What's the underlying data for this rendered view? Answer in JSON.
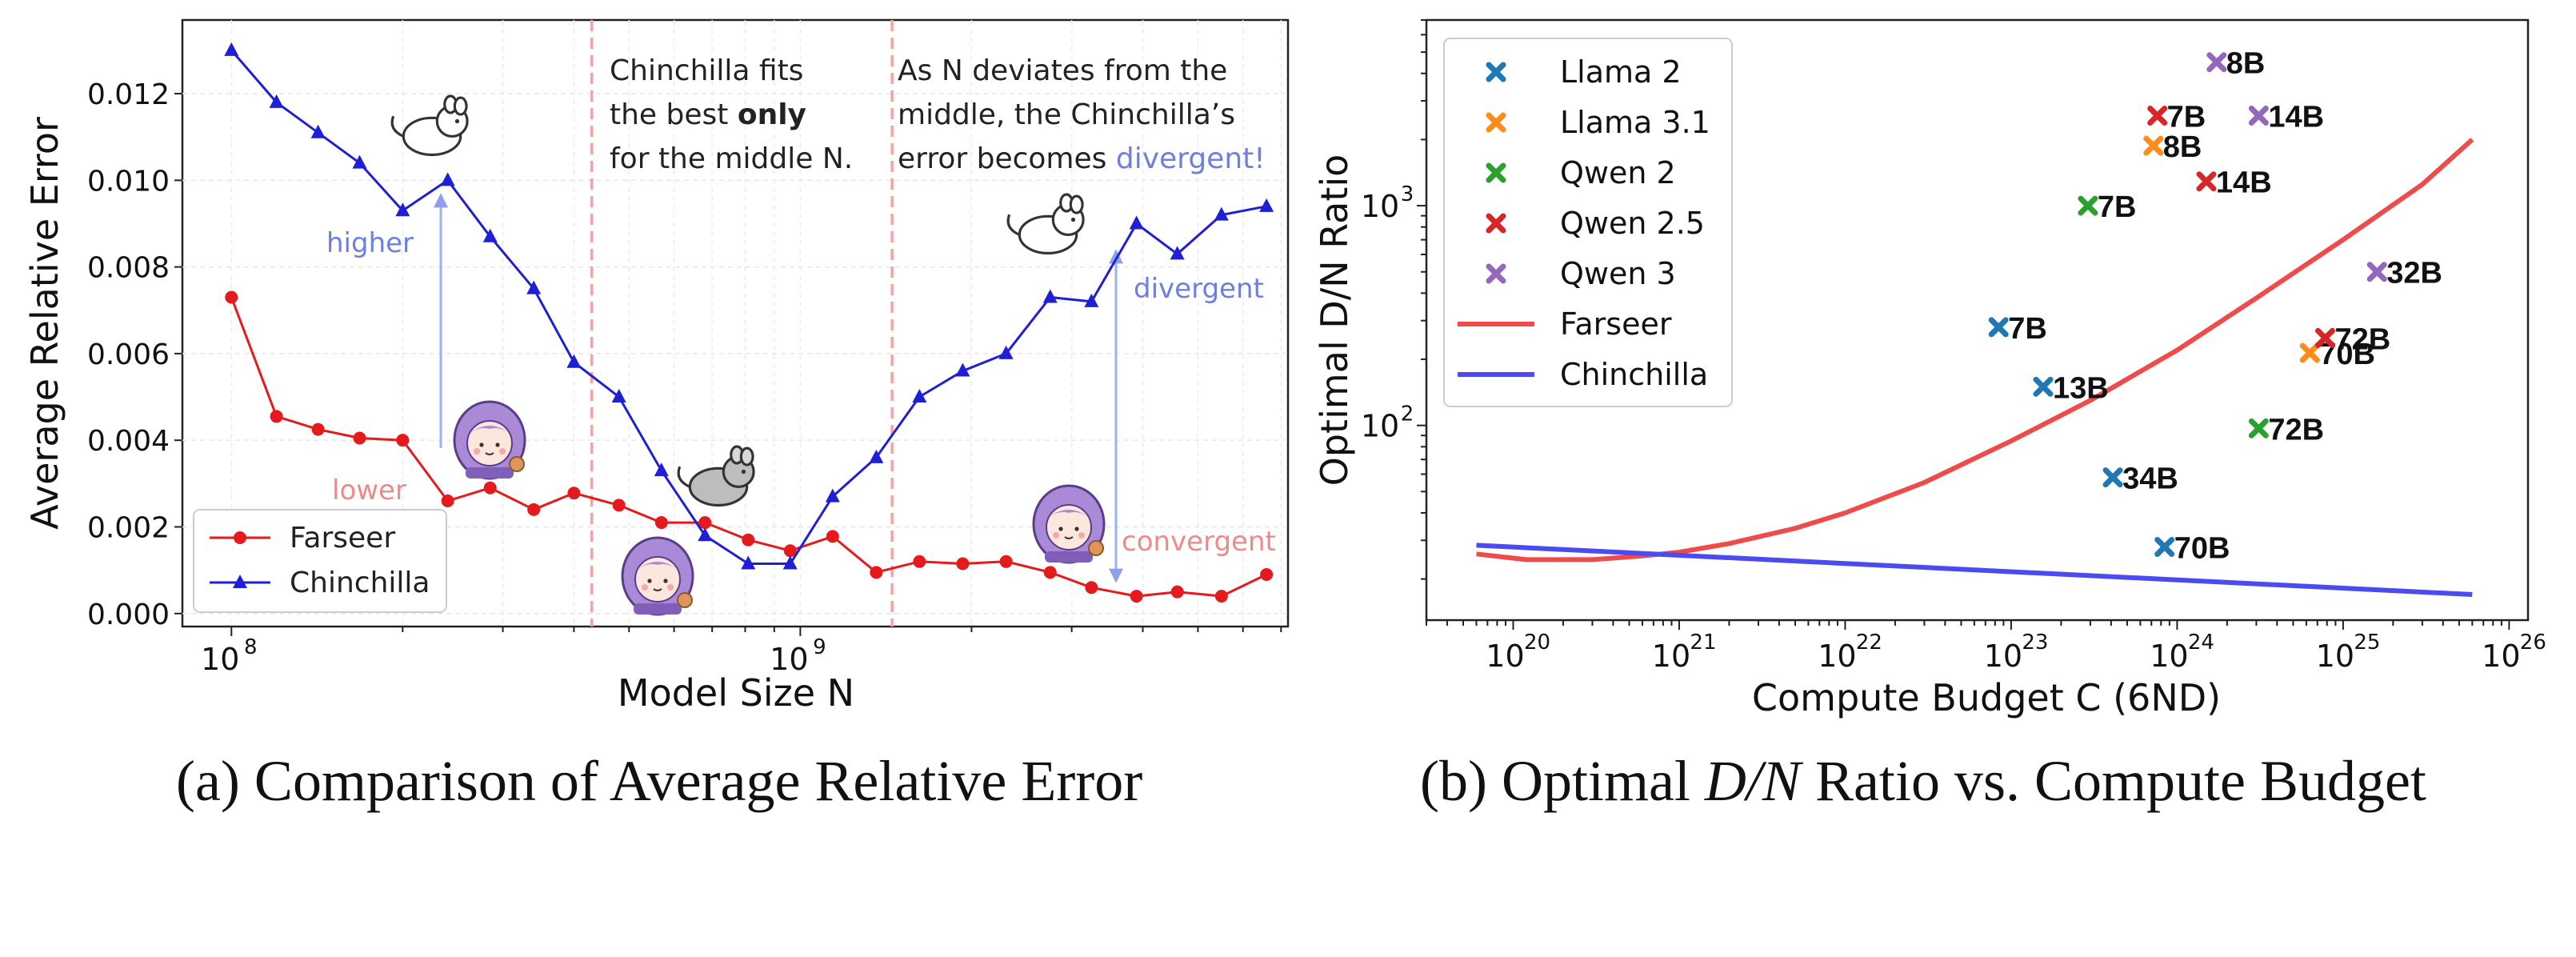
{
  "captions": {
    "a_prefix": "(a)",
    "a_text": "Comparison of Average Relative Error",
    "b_prefix": "(b)",
    "b_text_1": "Optimal ",
    "b_math": "D/N",
    "b_text_2": " Ratio vs. Compute Budget"
  },
  "colors": {
    "farseer": "#e41a1c",
    "chinchilla": "#1f1fd6",
    "farseer_line_b": "#ef4b4b",
    "chinchilla_line_b": "#4b4bef",
    "llama2": "#1f77b4",
    "llama31": "#ff8c1a",
    "qwen2": "#2ca02c",
    "qwen25": "#d62728",
    "qwen3": "#9467bd",
    "pink_text": "#ef8a8a",
    "blue_text": "#6d7fe0",
    "divider": "#f4a3a3"
  },
  "chart_data": [
    {
      "type": "line",
      "title": "Comparison of Average Relative Error",
      "xlabel": "Model Size N",
      "ylabel": "Average Relative Error",
      "xscale": "log",
      "xlim": [
        82000000.0,
        7200000000.0
      ],
      "ylim": [
        -0.0003,
        0.0137
      ],
      "yticks": [
        "0.000",
        "0.002",
        "0.004",
        "0.006",
        "0.008",
        "0.010",
        "0.012"
      ],
      "xtick_labels": [
        {
          "base": "10",
          "exp": "8"
        },
        {
          "base": "10",
          "exp": "9"
        }
      ],
      "legend_position": "bottom-left",
      "legend": [
        "Farseer",
        "Chinchilla"
      ],
      "x": [
        100000000.0,
        120000000.0,
        142000000.0,
        168000000.0,
        200000000.0,
        240000000.0,
        285000000.0,
        340000000.0,
        400000000.0,
        480000000.0,
        570000000.0,
        680000000.0,
        810000000.0,
        960000000.0,
        1140000000.0,
        1360000000.0,
        1620000000.0,
        1930000000.0,
        2300000000.0,
        2750000000.0,
        3250000000.0,
        3900000000.0,
        4600000000.0,
        5500000000.0,
        6600000000.0
      ],
      "series": [
        {
          "name": "Farseer",
          "marker": "circle",
          "values": [
            0.0073,
            0.00455,
            0.00425,
            0.00405,
            0.004,
            0.0026,
            0.0029,
            0.0024,
            0.00278,
            0.0025,
            0.0021,
            0.0021,
            0.0017,
            0.00145,
            0.00178,
            0.00095,
            0.0012,
            0.00115,
            0.0012,
            0.00095,
            0.0006,
            0.0004,
            0.0005,
            0.0004,
            0.0009
          ]
        },
        {
          "name": "Chinchilla",
          "marker": "triangle",
          "values": [
            0.013,
            0.0118,
            0.0111,
            0.0104,
            0.0093,
            0.01,
            0.0087,
            0.0075,
            0.0058,
            0.005,
            0.0033,
            0.0018,
            0.00115,
            0.00115,
            0.0027,
            0.0036,
            0.005,
            0.0056,
            0.006,
            0.0073,
            0.0072,
            0.009,
            0.0083,
            0.0092,
            0.0094
          ]
        }
      ],
      "dividers_x": [
        430000000.0,
        1450000000.0
      ],
      "annotations": {
        "middle_text_1": "Chinchilla fits",
        "middle_text_2a": "the best ",
        "middle_text_2b": "only",
        "middle_text_3": "for the middle N.",
        "right_text_1": "As N deviates from the",
        "right_text_2": "middle, the Chinchilla’s",
        "right_text_3a": "error becomes ",
        "right_text_3b": "divergent!",
        "higher": "higher",
        "lower": "lower",
        "divergent": "divergent",
        "convergent": "convergent"
      }
    },
    {
      "type": "line+scatter",
      "title": "Optimal D/N Ratio vs. Compute Budget",
      "xlabel": "Compute Budget C (6ND)",
      "ylabel": "Optimal D/N Ratio",
      "xscale": "log",
      "yscale": "log",
      "xlim": [
        3e+19,
        1.3e+26
      ],
      "ylim": [
        13,
        7000
      ],
      "xtick_exps": [
        "20",
        "21",
        "22",
        "23",
        "24",
        "25",
        "26"
      ],
      "ytick_exps": [
        "2",
        "3"
      ],
      "legend_position": "top-left",
      "legend": [
        "Llama 2",
        "Llama 3.1",
        "Qwen 2",
        "Qwen 2.5",
        "Qwen 3",
        "Farseer",
        "Chinchilla"
      ],
      "lines": [
        {
          "name": "Farseer",
          "x": [
            6e+19,
            1.2e+20,
            3e+20,
            6e+20,
            1e+21,
            2e+21,
            5e+21,
            1e+22,
            3e+22,
            1e+23,
            3e+23,
            1e+24,
            3e+24,
            1e+25,
            3e+25,
            6e+25
          ],
          "y": [
            26,
            24.5,
            24.5,
            25.5,
            26.5,
            29,
            34,
            40,
            55,
            85,
            130,
            220,
            380,
            700,
            1250,
            2000
          ]
        },
        {
          "name": "Chinchilla",
          "x": [
            6e+19,
            6e+25
          ],
          "y": [
            28.5,
            17
          ]
        }
      ],
      "points": [
        {
          "family": "Llama 2",
          "label": "7B",
          "C": 8.4e+22,
          "ratio": 280
        },
        {
          "family": "Llama 2",
          "label": "13B",
          "C": 1.56e+23,
          "ratio": 150
        },
        {
          "family": "Llama 2",
          "label": "34B",
          "C": 4.1e+23,
          "ratio": 58
        },
        {
          "family": "Llama 2",
          "label": "70B",
          "C": 8.4e+23,
          "ratio": 28
        },
        {
          "family": "Llama 3.1",
          "label": "8B",
          "C": 7.2e+23,
          "ratio": 1875
        },
        {
          "family": "Llama 3.1",
          "label": "70B",
          "C": 6.3e+24,
          "ratio": 214
        },
        {
          "family": "Qwen 2",
          "label": "7B",
          "C": 2.9e+23,
          "ratio": 1000
        },
        {
          "family": "Qwen 2",
          "label": "72B",
          "C": 3.1e+24,
          "ratio": 97
        },
        {
          "family": "Qwen 2.5",
          "label": "7B",
          "C": 7.6e+23,
          "ratio": 2570
        },
        {
          "family": "Qwen 2.5",
          "label": "14B",
          "C": 1.5e+24,
          "ratio": 1290
        },
        {
          "family": "Qwen 2.5",
          "label": "72B",
          "C": 7.8e+24,
          "ratio": 250
        },
        {
          "family": "Qwen 3",
          "label": "8B",
          "C": 1.73e+24,
          "ratio": 4500
        },
        {
          "family": "Qwen 3",
          "label": "14B",
          "C": 3.1e+24,
          "ratio": 2570
        },
        {
          "family": "Qwen 3",
          "label": "32B",
          "C": 1.6e+25,
          "ratio": 500
        }
      ]
    }
  ]
}
